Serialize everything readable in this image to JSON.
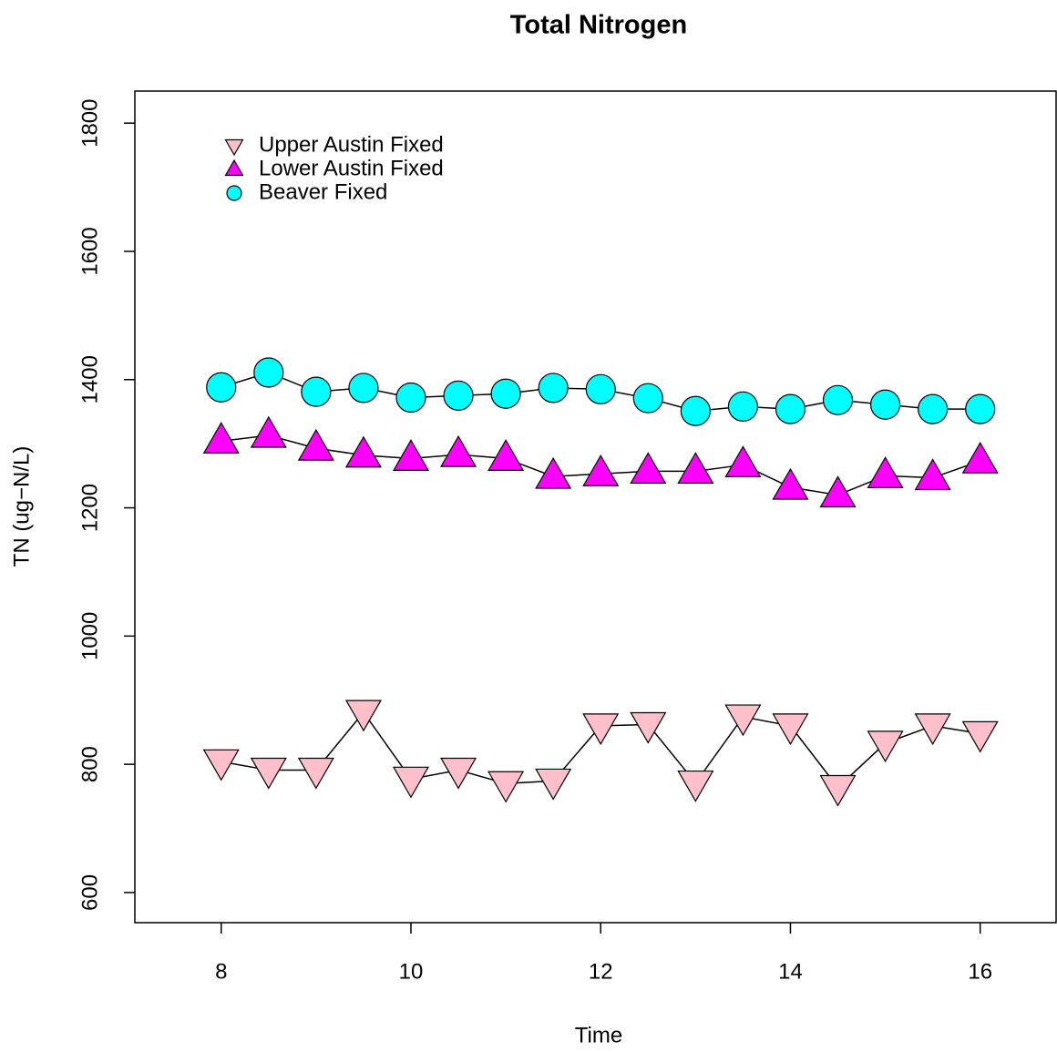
{
  "chart_data": {
    "type": "line",
    "title": "Total Nitrogen",
    "xlabel": "Time",
    "ylabel": "TN (ug−N/L)",
    "x": [
      8,
      8.5,
      9,
      9.5,
      10,
      10.5,
      11,
      11.5,
      12,
      12.5,
      13,
      13.5,
      14,
      14.5,
      15,
      15.5,
      16
    ],
    "series": [
      {
        "name": "Upper Austin Fixed",
        "color": "#ffc0cb",
        "marker": "triangle-down",
        "values": [
          804,
          791,
          791,
          881,
          777,
          791,
          770,
          774,
          860,
          862,
          771,
          874,
          860,
          764,
          833,
          860,
          848
        ]
      },
      {
        "name": "Lower Austin Fixed",
        "color": "#ff00ff",
        "marker": "triangle-up",
        "values": [
          1304,
          1313,
          1293,
          1282,
          1277,
          1283,
          1277,
          1249,
          1253,
          1257,
          1257,
          1267,
          1232,
          1220,
          1250,
          1247,
          1273
        ]
      },
      {
        "name": "Beaver Fixed",
        "color": "#00ffff",
        "marker": "circle",
        "values": [
          1388,
          1411,
          1381,
          1387,
          1372,
          1375,
          1378,
          1387,
          1385,
          1371,
          1351,
          1358,
          1354,
          1368,
          1361,
          1354,
          1354
        ]
      }
    ],
    "xlim": [
      7.09,
      16.8
    ],
    "ylim": [
      553,
      1850
    ],
    "xticks": [
      8,
      10,
      12,
      14,
      16
    ],
    "yticks": [
      600,
      800,
      1000,
      1200,
      1400,
      1600,
      1800
    ],
    "legend": "topleft"
  }
}
